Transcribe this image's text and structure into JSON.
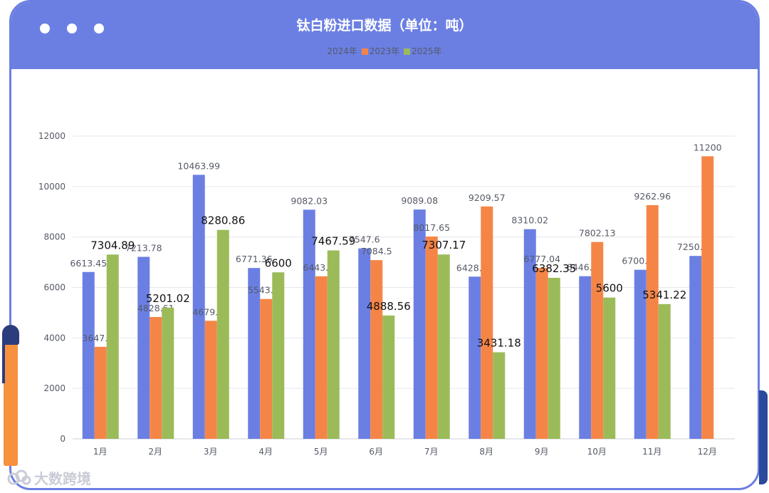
{
  "chart_data": {
    "type": "bar",
    "title": "钛白粉进口数据（单位：吨）",
    "categories": [
      "1月",
      "2月",
      "3月",
      "4月",
      "5月",
      "6月",
      "7月",
      "8月",
      "9月",
      "10月",
      "11月",
      "12月"
    ],
    "series": [
      {
        "name": "2024年",
        "color": "#6b7fe3",
        "values": [
          6613.45,
          7213.78,
          10463.99,
          6771.36,
          9082.03,
          7547.6,
          9089.08,
          6428.66,
          8310.02,
          6446.65,
          6700.87,
          7250.35
        ]
      },
      {
        "name": "2023年",
        "color": "#f58547",
        "values": [
          3647.19,
          4828.61,
          4679.41,
          5543.37,
          6443.75,
          7084.5,
          8017.65,
          9209.57,
          6777.04,
          7802.13,
          9262.96,
          11200
        ]
      },
      {
        "name": "2025年",
        "color": "#9bbb59",
        "values": [
          7304.89,
          5201.02,
          8280.86,
          6600,
          7467.59,
          4888.56,
          7307.17,
          3431.18,
          6382.35,
          5600,
          5341.22,
          null
        ]
      }
    ],
    "ylim": [
      0,
      12000
    ],
    "yticks": [
      0,
      2000,
      4000,
      6000,
      8000,
      10000,
      12000
    ],
    "grid": true,
    "legend_position": "top-center"
  },
  "watermark": {
    "text": "大数跨境",
    "icon": "cloud-logo-icon"
  }
}
